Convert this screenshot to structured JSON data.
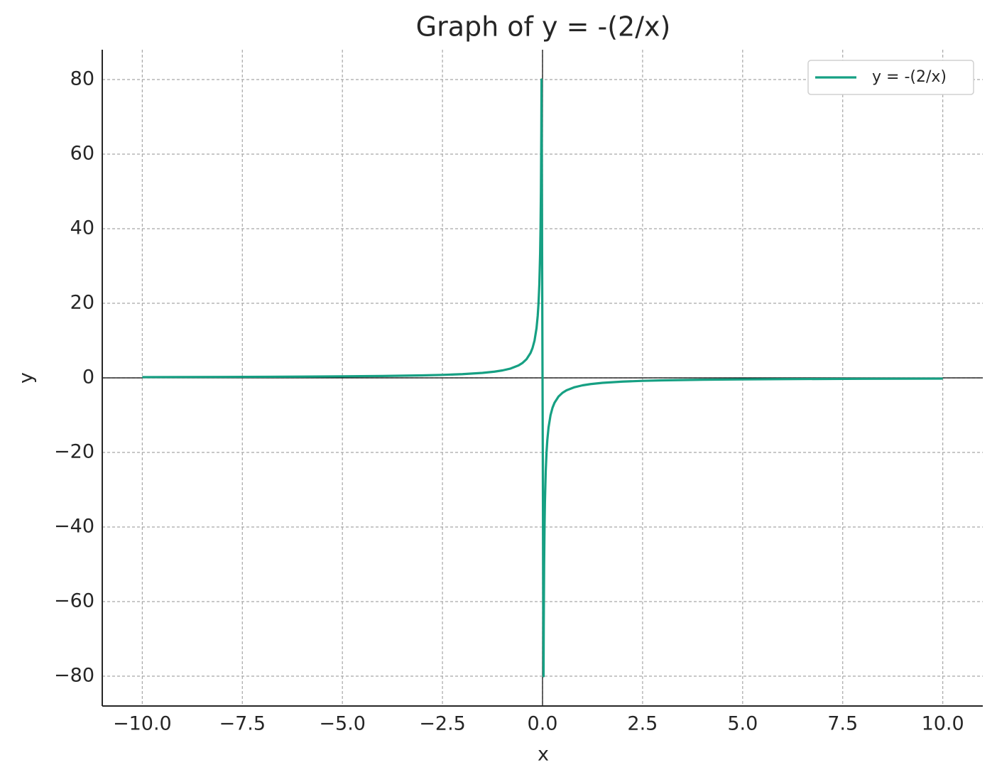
{
  "chart_data": {
    "type": "line",
    "title": "Graph of y = -(2/x)",
    "x_label": "x",
    "y_label": "y",
    "x": [
      -10,
      -8,
      -6,
      -5,
      -4,
      -3,
      -2.5,
      -2,
      -1.5,
      -1.2,
      -1,
      -0.8,
      -0.6,
      -0.5,
      -0.4,
      -0.3,
      -0.25,
      -0.2,
      -0.15,
      -0.12,
      -0.1,
      -0.08,
      -0.06,
      -0.05,
      -0.04,
      -0.03,
      -0.025,
      0.025,
      0.03,
      0.04,
      0.05,
      0.06,
      0.08,
      0.1,
      0.12,
      0.15,
      0.2,
      0.25,
      0.3,
      0.4,
      0.5,
      0.6,
      0.8,
      1,
      1.2,
      1.5,
      2,
      2.5,
      3,
      4,
      5,
      6,
      8,
      10
    ],
    "series": [
      {
        "name": "y = -(2/x)",
        "color": "#16a083",
        "values": [
          0.2,
          0.25,
          0.333,
          0.4,
          0.5,
          0.667,
          0.8,
          1,
          1.333,
          1.667,
          2,
          2.5,
          3.333,
          4,
          5,
          6.667,
          8,
          10,
          13.333,
          16.667,
          20,
          25,
          33.333,
          40,
          50,
          66.667,
          80,
          -80,
          -66.667,
          -50,
          -40,
          -33.333,
          -25,
          -20,
          -16.667,
          -13.333,
          -10,
          -8,
          -6.667,
          -5,
          -4,
          -3.333,
          -2.5,
          -2,
          -1.667,
          -1.333,
          -1,
          -0.8,
          -0.667,
          -0.5,
          -0.4,
          -0.333,
          -0.25,
          -0.2
        ]
      }
    ],
    "xlim": [
      -11,
      11
    ],
    "ylim": [
      -88,
      88
    ],
    "xticks": [
      {
        "value": -10,
        "label": "−10.0"
      },
      {
        "value": -7.5,
        "label": "−7.5"
      },
      {
        "value": -5,
        "label": "−5.0"
      },
      {
        "value": -2.5,
        "label": "−2.5"
      },
      {
        "value": 0,
        "label": "0.0"
      },
      2.5,
      {
        "value": 5,
        "label": "5.0"
      },
      7.5,
      {
        "value": 10,
        "label": "10.0"
      }
    ],
    "yticks": [
      {
        "value": -80,
        "label": "−80"
      },
      {
        "value": -60,
        "label": "−60"
      },
      {
        "value": -40,
        "label": "−40"
      },
      {
        "value": -20,
        "label": "−20"
      },
      0,
      20,
      40,
      60,
      80
    ],
    "grid": true,
    "legend": "upper right"
  }
}
